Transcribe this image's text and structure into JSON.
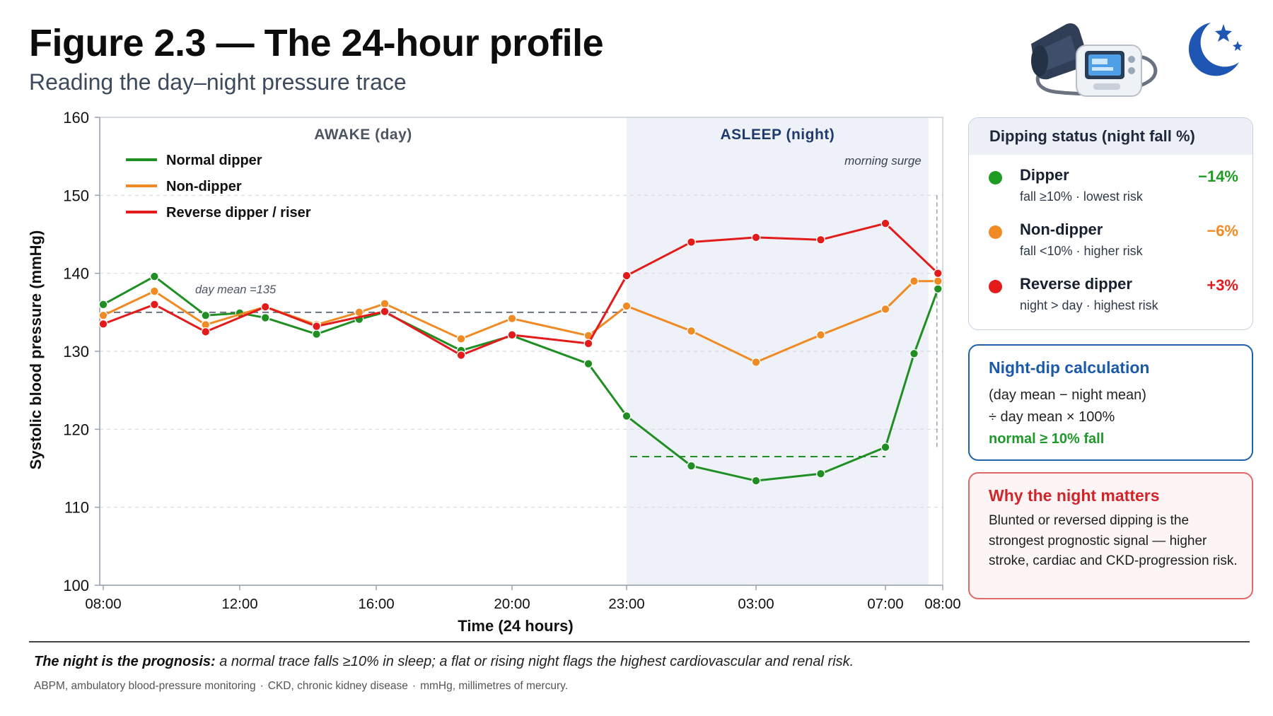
{
  "header": {
    "title": "Figure 2.3 — The 24-hour profile",
    "subtitle": "Reading the day–night pressure trace"
  },
  "icons": {
    "device": "blood-pressure-monitor-icon",
    "night": "moon-stars-icon"
  },
  "colors": {
    "dipper": "#1f8f24",
    "non_dipper": "#f08a24",
    "reverse": "#e31b1b",
    "night_band": "#eef2f8",
    "accent_blue": "#1d62ad"
  },
  "chart_data": {
    "type": "line",
    "xlabel": "Time (24 hours)",
    "ylabel": "Systolic blood pressure (mmHg)",
    "ylim": [
      100,
      160
    ],
    "yticks": [
      100,
      110,
      120,
      130,
      140,
      150,
      160
    ],
    "xlim": [
      "08:00",
      "08:00 (+1 day)"
    ],
    "x_tick_labels": [
      "08:00",
      "12:00",
      "16:00",
      "20:00",
      "23:00",
      "03:00",
      "07:00",
      "08:00"
    ],
    "grid": true,
    "legend": "top-left",
    "band_labels": {
      "day": "AWAKE (day)",
      "night": "ASLEEP (night)"
    },
    "night_band": [
      "23:00",
      "07:45"
    ],
    "annotations": {
      "day_mean": "day mean =135",
      "morning_surge": "morning surge"
    },
    "day_mean_value": 135,
    "dipper_night_mean_value": 116.5,
    "series": [
      {
        "name": "Normal dipper",
        "color": "#1f8f24",
        "points": [
          [
            "08:00",
            136.0
          ],
          [
            "09:30",
            139.6
          ],
          [
            "11:00",
            134.6
          ],
          [
            "12:00",
            134.9
          ],
          [
            "12:45",
            134.3
          ],
          [
            "14:15",
            132.2
          ],
          [
            "15:30",
            134.1
          ],
          [
            "16:15",
            135.0
          ],
          [
            "18:30",
            130.1
          ],
          [
            "20:00",
            132.0
          ],
          [
            "22:00",
            128.4
          ],
          [
            "23:00",
            121.7
          ],
          [
            "01:00",
            115.3
          ],
          [
            "03:00",
            113.4
          ],
          [
            "05:00",
            114.3
          ],
          [
            "07:00",
            117.7
          ],
          [
            "07:30",
            129.7
          ],
          [
            "07:55",
            138.0
          ]
        ]
      },
      {
        "name": "Non-dipper",
        "color": "#f08a24",
        "points": [
          [
            "08:00",
            134.6
          ],
          [
            "09:30",
            137.7
          ],
          [
            "11:00",
            133.4
          ],
          [
            "12:45",
            135.7
          ],
          [
            "14:15",
            133.4
          ],
          [
            "15:30",
            135.0
          ],
          [
            "16:15",
            136.1
          ],
          [
            "18:30",
            131.6
          ],
          [
            "20:00",
            134.2
          ],
          [
            "22:00",
            132.0
          ],
          [
            "23:00",
            135.8
          ],
          [
            "01:00",
            132.6
          ],
          [
            "03:00",
            128.6
          ],
          [
            "05:00",
            132.1
          ],
          [
            "07:00",
            135.4
          ],
          [
            "07:30",
            139.0
          ],
          [
            "07:55",
            139.0
          ]
        ]
      },
      {
        "name": "Reverse dipper / riser",
        "color": "#e31b1b",
        "points": [
          [
            "08:00",
            133.5
          ],
          [
            "09:30",
            136.0
          ],
          [
            "11:00",
            132.5
          ],
          [
            "12:45",
            135.7
          ],
          [
            "14:15",
            133.2
          ],
          [
            "16:15",
            135.1
          ],
          [
            "18:30",
            129.5
          ],
          [
            "20:00",
            132.1
          ],
          [
            "22:00",
            131.0
          ],
          [
            "23:00",
            139.7
          ],
          [
            "01:00",
            144.0
          ],
          [
            "03:00",
            144.6
          ],
          [
            "05:00",
            144.3
          ],
          [
            "07:00",
            146.4
          ],
          [
            "07:55",
            140.0
          ]
        ]
      }
    ]
  },
  "dipping_status": {
    "title": "Dipping status (night fall %)",
    "rows": [
      {
        "name": "Dipper",
        "desc": "fall ≥10% · lowest risk",
        "pct": "−14%",
        "color": "#1f9a22"
      },
      {
        "name": "Non-dipper",
        "desc": "fall <10% · higher risk",
        "pct": "−6%",
        "color": "#f08a24"
      },
      {
        "name": "Reverse dipper",
        "desc": "night > day · highest risk",
        "pct": "+3%",
        "color": "#e31b1b"
      }
    ]
  },
  "calc": {
    "title": "Night-dip calculation",
    "line1": "(day mean − night mean)",
    "line2": "÷ day mean × 100%",
    "line3": "normal ≥ 10% fall"
  },
  "why": {
    "title": "Why the night matters",
    "body": "Blunted or reversed dipping is the strongest prognostic signal — higher stroke, cardiac and CKD-progression risk."
  },
  "footer": {
    "lead": "The night is the prognosis:",
    "text": " a normal trace falls ≥10% in sleep; a flat or rising night flags the highest cardiovascular and renal risk.",
    "abbrevs": [
      "ABPM, ambulatory blood-pressure monitoring",
      "CKD, chronic kidney disease",
      "mmHg, millimetres of mercury."
    ]
  }
}
